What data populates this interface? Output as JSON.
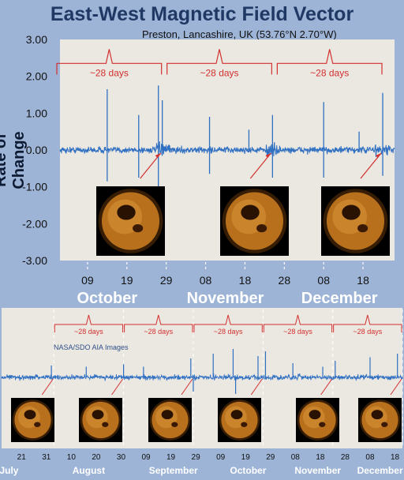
{
  "title": "East-West Magnetic Field Vector",
  "subtitle": "Preston, Lancashire, UK  (53.76°N 2.70°W)",
  "ylabel": "Rate of Change",
  "colors": {
    "background": "#9db4d6",
    "plot_bg": "#ebe8e1",
    "signal": "#2f6fc2",
    "annotation": "#d32f2f",
    "dashed": "#ffffff",
    "title": "#1f3864"
  },
  "chart_data": [
    {
      "type": "line",
      "ylabel": "Rate of Change",
      "ylim": [
        -3.0,
        3.0
      ],
      "yticks": [
        "3.00",
        "2.00",
        "1.00",
        "0.00",
        "-1.00",
        "-2.00",
        "-3.00"
      ],
      "ytick_values": [
        3,
        2,
        1,
        0,
        -1,
        -2,
        -3
      ],
      "x_range": [
        "2016-10-02",
        "2016-12-26"
      ],
      "xtick_labels": [
        "09",
        "19",
        "29",
        "08",
        "18",
        "28",
        "08",
        "18"
      ],
      "xtick_dates": [
        "2016-10-09",
        "2016-10-19",
        "2016-10-29",
        "2016-11-08",
        "2016-11-18",
        "2016-11-28",
        "2016-12-08",
        "2016-12-18"
      ],
      "month_labels": [
        "October",
        "November",
        "December"
      ],
      "month_label_dates": [
        "2016-10-14",
        "2016-11-13",
        "2016-12-12"
      ],
      "rotation_markers": [
        "2016-10-28",
        "2016-11-25",
        "2016-12-23"
      ],
      "annotations": [
        "~28 days",
        "~28 days",
        "~28 days"
      ],
      "bracket_ranges": [
        [
          "2016-10-01",
          "2016-10-28"
        ],
        [
          "2016-10-29",
          "2016-11-25"
        ],
        [
          "2016-11-26",
          "2016-12-23"
        ]
      ],
      "spikes": [
        {
          "x": "2016-10-14",
          "y": 1.65
        },
        {
          "x": "2016-10-14",
          "y": -0.85
        },
        {
          "x": "2016-10-22",
          "y": 0.95
        },
        {
          "x": "2016-10-22",
          "y": -0.75
        },
        {
          "x": "2016-10-27",
          "y": 1.75
        },
        {
          "x": "2016-10-27",
          "y": -1.1
        },
        {
          "x": "2016-10-28",
          "y": 1.35
        },
        {
          "x": "2016-11-09",
          "y": 0.9
        },
        {
          "x": "2016-11-09",
          "y": -0.65
        },
        {
          "x": "2016-11-19",
          "y": 0.55
        },
        {
          "x": "2016-11-25",
          "y": 0.95
        },
        {
          "x": "2016-11-25",
          "y": -0.75
        },
        {
          "x": "2016-12-08",
          "y": 1.3
        },
        {
          "x": "2016-12-08",
          "y": -0.75
        },
        {
          "x": "2016-12-17",
          "y": 0.5
        },
        {
          "x": "2016-12-23",
          "y": 1.55
        },
        {
          "x": "2016-12-23",
          "y": -0.7
        }
      ],
      "noise_amplitude": 0.15
    },
    {
      "type": "line",
      "label": "NASA/SDO AIA Images",
      "x_range": [
        "2016-07-13",
        "2016-12-21"
      ],
      "xtick_labels": [
        "21",
        "31",
        "10",
        "20",
        "30",
        "09",
        "19",
        "29",
        "09",
        "19",
        "29",
        "08",
        "18",
        "28",
        "08",
        "18"
      ],
      "xtick_dates": [
        "2016-07-21",
        "2016-07-31",
        "2016-08-10",
        "2016-08-20",
        "2016-08-30",
        "2016-09-09",
        "2016-09-19",
        "2016-09-29",
        "2016-10-09",
        "2016-10-19",
        "2016-10-29",
        "2016-11-08",
        "2016-11-18",
        "2016-11-28",
        "2016-12-08",
        "2016-12-18"
      ],
      "month_labels": [
        "July",
        "August",
        "September",
        "October",
        "November",
        "December"
      ],
      "month_label_dates": [
        "2016-07-16",
        "2016-08-17",
        "2016-09-20",
        "2016-10-20",
        "2016-11-17",
        "2016-12-12"
      ],
      "rotation_markers": [
        "2016-08-03",
        "2016-08-31",
        "2016-09-28",
        "2016-10-26",
        "2016-11-23",
        "2016-12-21"
      ],
      "annotations": [
        "~28 days",
        "~28 days",
        "~28 days",
        "~28 days",
        "~28 days"
      ],
      "bracket_ranges": [
        [
          "2016-08-03",
          "2016-08-31"
        ],
        [
          "2016-08-31",
          "2016-09-28"
        ],
        [
          "2016-09-28",
          "2016-10-26"
        ],
        [
          "2016-10-26",
          "2016-11-23"
        ],
        [
          "2016-11-23",
          "2016-12-21"
        ]
      ],
      "spikes": [
        {
          "x": "2016-08-02",
          "y": 0.5
        },
        {
          "x": "2016-08-16",
          "y": 0.45
        },
        {
          "x": "2016-08-31",
          "y": 0.55
        },
        {
          "x": "2016-09-08",
          "y": 0.45
        },
        {
          "x": "2016-09-27",
          "y": 0.8
        },
        {
          "x": "2016-09-28",
          "y": -0.6
        },
        {
          "x": "2016-10-06",
          "y": 1.0
        },
        {
          "x": "2016-10-14",
          "y": 1.2
        },
        {
          "x": "2016-10-15",
          "y": -0.7
        },
        {
          "x": "2016-10-24",
          "y": 0.9
        },
        {
          "x": "2016-10-27",
          "y": 1.1
        },
        {
          "x": "2016-11-07",
          "y": 0.6
        },
        {
          "x": "2016-11-19",
          "y": 0.45
        },
        {
          "x": "2016-11-24",
          "y": 0.7
        },
        {
          "x": "2016-12-08",
          "y": 0.85
        },
        {
          "x": "2016-12-19",
          "y": 1.0
        }
      ],
      "noise_amplitude": 0.18
    }
  ]
}
